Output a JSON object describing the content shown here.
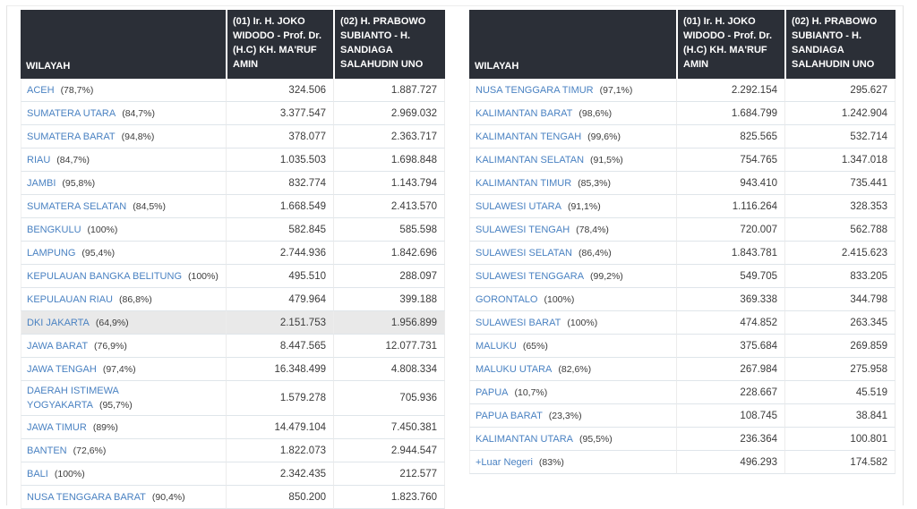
{
  "columns": {
    "wilayah": "WILAYAH",
    "candidate_01": "(01) Ir. H. JOKO WIDODO - Prof. Dr. (H.C) KH. MA'RUF AMIN",
    "candidate_02": "(02) H. PRABOWO SUBIANTO - H. SANDIAGA SALAHUDIN UNO"
  },
  "colors": {
    "header_bg": "#2b2f37",
    "header_text": "#ffffff",
    "region_link": "#4a82c2",
    "row_border": "#dfe5ea",
    "highlight_row_bg": "#e9e9e9"
  },
  "tables": {
    "left": {
      "rows": [
        {
          "region": "ACEH",
          "pct": "(78,7%)",
          "votes_01": "324.506",
          "votes_02": "1.887.727"
        },
        {
          "region": "SUMATERA UTARA",
          "pct": "(84,7%)",
          "votes_01": "3.377.547",
          "votes_02": "2.969.032"
        },
        {
          "region": "SUMATERA BARAT",
          "pct": "(94,8%)",
          "votes_01": "378.077",
          "votes_02": "2.363.717"
        },
        {
          "region": "RIAU",
          "pct": "(84,7%)",
          "votes_01": "1.035.503",
          "votes_02": "1.698.848"
        },
        {
          "region": "JAMBI",
          "pct": "(95,8%)",
          "votes_01": "832.774",
          "votes_02": "1.143.794"
        },
        {
          "region": "SUMATERA SELATAN",
          "pct": "(84,5%)",
          "votes_01": "1.668.549",
          "votes_02": "2.413.570"
        },
        {
          "region": "BENGKULU",
          "pct": "(100%)",
          "votes_01": "582.845",
          "votes_02": "585.598"
        },
        {
          "region": "LAMPUNG",
          "pct": "(95,4%)",
          "votes_01": "2.744.936",
          "votes_02": "1.842.696"
        },
        {
          "region": "KEPULAUAN BANGKA BELITUNG",
          "pct": "(100%)",
          "votes_01": "495.510",
          "votes_02": "288.097"
        },
        {
          "region": "KEPULAUAN RIAU",
          "pct": "(86,8%)",
          "votes_01": "479.964",
          "votes_02": "399.188"
        },
        {
          "region": "DKI JAKARTA",
          "pct": "(64,9%)",
          "votes_01": "2.151.753",
          "votes_02": "1.956.899",
          "highlighted": true
        },
        {
          "region": "JAWA BARAT",
          "pct": "(76,9%)",
          "votes_01": "8.447.565",
          "votes_02": "12.077.731"
        },
        {
          "region": "JAWA TENGAH",
          "pct": "(97,4%)",
          "votes_01": "16.348.499",
          "votes_02": "4.808.334"
        },
        {
          "region": "DAERAH ISTIMEWA YOGYAKARTA",
          "pct": "(95,7%)",
          "votes_01": "1.579.278",
          "votes_02": "705.936",
          "wrap": true
        },
        {
          "region": "JAWA TIMUR",
          "pct": "(89%)",
          "votes_01": "14.479.104",
          "votes_02": "7.450.381"
        },
        {
          "region": "BANTEN",
          "pct": "(72,6%)",
          "votes_01": "1.822.073",
          "votes_02": "2.944.547"
        },
        {
          "region": "BALI",
          "pct": "(100%)",
          "votes_01": "2.342.435",
          "votes_02": "212.577"
        },
        {
          "region": "NUSA TENGGARA BARAT",
          "pct": "(90,4%)",
          "votes_01": "850.200",
          "votes_02": "1.823.760"
        }
      ]
    },
    "right": {
      "rows": [
        {
          "region": "NUSA TENGGARA TIMUR",
          "pct": "(97,1%)",
          "votes_01": "2.292.154",
          "votes_02": "295.627"
        },
        {
          "region": "KALIMANTAN BARAT",
          "pct": "(98,6%)",
          "votes_01": "1.684.799",
          "votes_02": "1.242.904"
        },
        {
          "region": "KALIMANTAN TENGAH",
          "pct": "(99,6%)",
          "votes_01": "825.565",
          "votes_02": "532.714"
        },
        {
          "region": "KALIMANTAN SELATAN",
          "pct": "(91,5%)",
          "votes_01": "754.765",
          "votes_02": "1.347.018"
        },
        {
          "region": "KALIMANTAN TIMUR",
          "pct": "(85,3%)",
          "votes_01": "943.410",
          "votes_02": "735.441"
        },
        {
          "region": "SULAWESI UTARA",
          "pct": "(91,1%)",
          "votes_01": "1.116.264",
          "votes_02": "328.353"
        },
        {
          "region": "SULAWESI TENGAH",
          "pct": "(78,4%)",
          "votes_01": "720.007",
          "votes_02": "562.788"
        },
        {
          "region": "SULAWESI SELATAN",
          "pct": "(86,4%)",
          "votes_01": "1.843.781",
          "votes_02": "2.415.623"
        },
        {
          "region": "SULAWESI TENGGARA",
          "pct": "(99,2%)",
          "votes_01": "549.705",
          "votes_02": "833.205"
        },
        {
          "region": "GORONTALO",
          "pct": "(100%)",
          "votes_01": "369.338",
          "votes_02": "344.798"
        },
        {
          "region": "SULAWESI BARAT",
          "pct": "(100%)",
          "votes_01": "474.852",
          "votes_02": "263.345"
        },
        {
          "region": "MALUKU",
          "pct": "(65%)",
          "votes_01": "375.684",
          "votes_02": "269.859"
        },
        {
          "region": "MALUKU UTARA",
          "pct": "(82,6%)",
          "votes_01": "267.984",
          "votes_02": "275.958"
        },
        {
          "region": "PAPUA",
          "pct": "(10,7%)",
          "votes_01": "228.667",
          "votes_02": "45.519"
        },
        {
          "region": "PAPUA BARAT",
          "pct": "(23,3%)",
          "votes_01": "108.745",
          "votes_02": "38.841"
        },
        {
          "region": "KALIMANTAN UTARA",
          "pct": "(95,5%)",
          "votes_01": "236.364",
          "votes_02": "100.801"
        },
        {
          "region": "+Luar Negeri",
          "pct": "(83%)",
          "votes_01": "496.293",
          "votes_02": "174.582"
        }
      ]
    }
  }
}
